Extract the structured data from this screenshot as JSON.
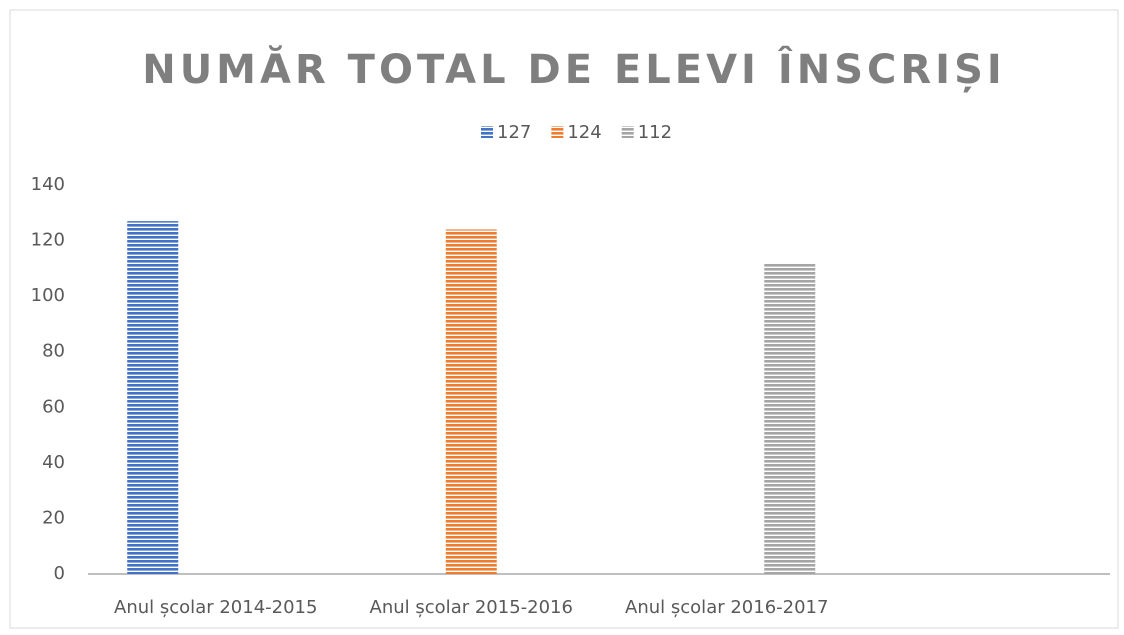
{
  "chart_data": {
    "type": "bar",
    "title": "NUMĂR TOTAL DE ELEVI ÎNSCRIȘI",
    "categories": [
      "Anul școlar 2014-2015",
      "Anul școlar 2015-2016",
      "Anul școlar 2016-2017",
      null
    ],
    "series": [
      {
        "name": "127",
        "color": "#4472c4",
        "values": [
          127,
          null,
          null,
          null
        ]
      },
      {
        "name": "124",
        "color": "#ed7d31",
        "values": [
          null,
          124,
          null,
          null
        ]
      },
      {
        "name": "112",
        "color": "#a5a5a5",
        "values": [
          null,
          null,
          112,
          null
        ]
      }
    ],
    "ylim": [
      0,
      140
    ],
    "yticks": [
      0,
      20,
      40,
      60,
      80,
      100,
      120,
      140
    ],
    "grid": false,
    "legend": "top"
  }
}
